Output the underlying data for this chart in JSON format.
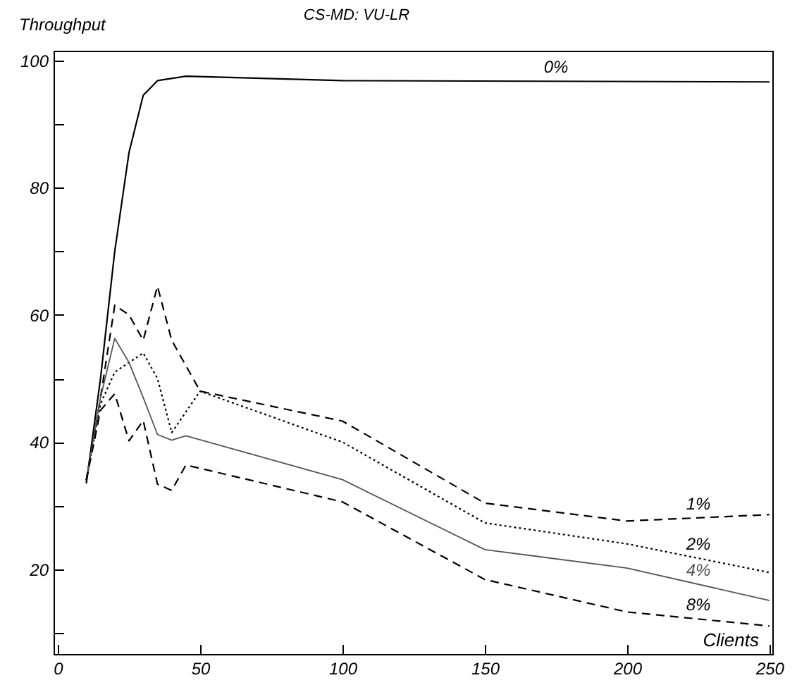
{
  "chart_data": {
    "type": "line",
    "title": "CS-MD: VU-LR",
    "xlabel": "Clients",
    "ylabel": "Throughput",
    "xlim": [
      -1.5,
      251
    ],
    "xticks": [
      0,
      50,
      100,
      150,
      200,
      250
    ],
    "ylim": [
      6.7,
      101.5
    ],
    "yticks": [
      {
        "value": 10,
        "label": null
      },
      20,
      {
        "value": 30,
        "label": null
      },
      40,
      {
        "value": 50,
        "label": null
      },
      60,
      {
        "value": 70,
        "label": null
      },
      80,
      {
        "value": 90,
        "label": null
      },
      100
    ],
    "marker": "none",
    "grid": false,
    "series": [
      {
        "name": "0%",
        "color": "#000000",
        "line_style": "solid",
        "x": [
          10,
          15,
          20,
          25,
          30,
          35,
          45,
          100,
          250
        ],
        "values": [
          33.5,
          50,
          70,
          85.5,
          94.5,
          96.8,
          97.5,
          96.8,
          96.6
        ]
      },
      {
        "name": "1%",
        "color": "#000000",
        "line_style": "dashed",
        "x": [
          10,
          15,
          20,
          25,
          30,
          35,
          40,
          50,
          100,
          150,
          200,
          250
        ],
        "values": [
          34,
          47,
          61.5,
          60,
          56,
          64.5,
          56,
          48,
          43.3,
          30.4,
          27.6,
          28.6
        ]
      },
      {
        "name": "2%",
        "color": "#000000",
        "line_style": "dotted",
        "x": [
          10,
          15,
          20,
          25,
          30,
          35,
          40,
          50,
          100,
          150,
          200,
          250
        ],
        "values": [
          34,
          46,
          51,
          52.5,
          54,
          50,
          41.5,
          48,
          40,
          27.3,
          24,
          19.5
        ]
      },
      {
        "name": "4%",
        "color": "#555555",
        "line_style": "solid",
        "x": [
          10,
          15,
          20,
          25,
          30,
          35,
          40,
          45,
          100,
          150,
          200,
          250
        ],
        "values": [
          34,
          47,
          56.3,
          52.5,
          47,
          41.2,
          40.3,
          41,
          34.1,
          23.1,
          20.2,
          15.1
        ]
      },
      {
        "name": "8%",
        "color": "#000000",
        "line_style": "dashed",
        "x": [
          10,
          15,
          20,
          25,
          30,
          35,
          40,
          45,
          100,
          150,
          200,
          250
        ],
        "values": [
          34,
          45,
          47.6,
          40.2,
          43.4,
          33.4,
          32.4,
          36.4,
          30.6,
          18.4,
          13.3,
          11.1
        ]
      }
    ]
  }
}
